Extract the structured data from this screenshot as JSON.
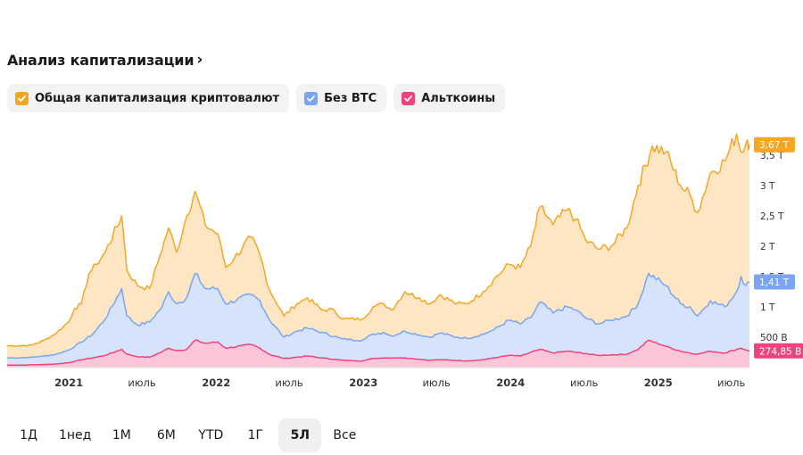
{
  "header": {
    "title": "Анализ капитализации",
    "chevron": "›"
  },
  "legend": [
    {
      "label": "Общая капитализация криптовалют",
      "color": "#f5a623"
    },
    {
      "label": "Без BTC",
      "color": "#7aa5f5"
    },
    {
      "label": "Альткоины",
      "color": "#f0437e"
    }
  ],
  "range_buttons": [
    {
      "label": "1Д",
      "active": false
    },
    {
      "label": "1нед",
      "active": false
    },
    {
      "label": "1М",
      "active": false
    },
    {
      "label": "6М",
      "active": false
    },
    {
      "label": "YTD",
      "active": false
    },
    {
      "label": "1Г",
      "active": false
    },
    {
      "label": "5Л",
      "active": true
    },
    {
      "label": "Все",
      "active": false
    }
  ],
  "chart_data": {
    "type": "area",
    "x_start": "2020-08-01",
    "x_end": "2025-08-15",
    "x_ticks": [
      {
        "date": "2021-01-01",
        "label": "2021",
        "bold": true
      },
      {
        "date": "2021-07-01",
        "label": "июль",
        "bold": false
      },
      {
        "date": "2022-01-01",
        "label": "2022",
        "bold": true
      },
      {
        "date": "2022-07-01",
        "label": "июль",
        "bold": false
      },
      {
        "date": "2023-01-01",
        "label": "2023",
        "bold": true
      },
      {
        "date": "2023-07-01",
        "label": "июль",
        "bold": false
      },
      {
        "date": "2024-01-01",
        "label": "2024",
        "bold": true
      },
      {
        "date": "2024-07-01",
        "label": "июль",
        "bold": false
      },
      {
        "date": "2025-01-01",
        "label": "2025",
        "bold": true
      },
      {
        "date": "2025-07-01",
        "label": "июль",
        "bold": false
      }
    ],
    "y_ticks": [
      {
        "value": 0.5,
        "label": "500 B"
      },
      {
        "value": 1.0,
        "label": "1 T"
      },
      {
        "value": 1.5,
        "label": "1,5 T"
      },
      {
        "value": 2.0,
        "label": "2 T"
      },
      {
        "value": 2.5,
        "label": "2,5 T"
      },
      {
        "value": 3.0,
        "label": "3 T"
      },
      {
        "value": 3.5,
        "label": "3,5 T"
      }
    ],
    "y_unit": "T",
    "ylim": [
      0.0,
      3.85
    ],
    "series": [
      {
        "name": "Общая капитализация криптовалют",
        "color": "#f5a623",
        "fill": "#fde6c4",
        "last_label": "3,67 T",
        "points": [
          [
            "2020-08-01",
            0.36
          ],
          [
            "2020-09-01",
            0.36
          ],
          [
            "2020-10-01",
            0.37
          ],
          [
            "2020-11-01",
            0.45
          ],
          [
            "2020-12-01",
            0.57
          ],
          [
            "2021-01-01",
            0.76
          ],
          [
            "2021-01-15",
            0.97
          ],
          [
            "2021-02-01",
            1.05
          ],
          [
            "2021-02-20",
            1.55
          ],
          [
            "2021-03-10",
            1.7
          ],
          [
            "2021-04-01",
            1.9
          ],
          [
            "2021-05-12",
            2.5
          ],
          [
            "2021-05-25",
            1.6
          ],
          [
            "2021-06-20",
            1.35
          ],
          [
            "2021-07-20",
            1.3
          ],
          [
            "2021-08-15",
            1.85
          ],
          [
            "2021-09-05",
            2.3
          ],
          [
            "2021-09-25",
            1.9
          ],
          [
            "2021-10-20",
            2.5
          ],
          [
            "2021-11-10",
            2.9
          ],
          [
            "2021-12-05",
            2.35
          ],
          [
            "2022-01-05",
            2.2
          ],
          [
            "2022-01-25",
            1.65
          ],
          [
            "2022-02-15",
            1.8
          ],
          [
            "2022-03-28",
            2.15
          ],
          [
            "2022-04-20",
            1.85
          ],
          [
            "2022-05-12",
            1.3
          ],
          [
            "2022-06-18",
            0.85
          ],
          [
            "2022-07-20",
            1.05
          ],
          [
            "2022-08-15",
            1.15
          ],
          [
            "2022-09-20",
            0.95
          ],
          [
            "2022-10-20",
            0.95
          ],
          [
            "2022-11-10",
            0.8
          ],
          [
            "2022-12-30",
            0.8
          ],
          [
            "2023-01-25",
            1.0
          ],
          [
            "2023-02-20",
            1.05
          ],
          [
            "2023-03-12",
            0.95
          ],
          [
            "2023-04-14",
            1.25
          ],
          [
            "2023-05-20",
            1.15
          ],
          [
            "2023-06-15",
            1.05
          ],
          [
            "2023-07-10",
            1.2
          ],
          [
            "2023-08-20",
            1.05
          ],
          [
            "2023-09-15",
            1.05
          ],
          [
            "2023-10-25",
            1.25
          ],
          [
            "2023-11-20",
            1.45
          ],
          [
            "2023-12-28",
            1.7
          ],
          [
            "2024-01-25",
            1.65
          ],
          [
            "2024-02-20",
            2.0
          ],
          [
            "2024-03-14",
            2.65
          ],
          [
            "2024-04-15",
            2.35
          ],
          [
            "2024-05-20",
            2.6
          ],
          [
            "2024-06-10",
            2.45
          ],
          [
            "2024-07-05",
            2.1
          ],
          [
            "2024-08-05",
            1.95
          ],
          [
            "2024-09-06",
            2.0
          ],
          [
            "2024-10-15",
            2.3
          ],
          [
            "2024-11-12",
            3.0
          ],
          [
            "2024-12-17",
            3.65
          ],
          [
            "2025-01-20",
            3.55
          ],
          [
            "2025-02-25",
            3.0
          ],
          [
            "2025-03-20",
            2.85
          ],
          [
            "2025-04-08",
            2.55
          ],
          [
            "2025-05-10",
            3.2
          ],
          [
            "2025-06-15",
            3.4
          ],
          [
            "2025-07-14",
            3.85
          ],
          [
            "2025-07-25",
            3.55
          ],
          [
            "2025-08-10",
            3.75
          ],
          [
            "2025-08-15",
            3.67
          ]
        ]
      },
      {
        "name": "Без BTC",
        "color": "#7aa5f5",
        "fill": "#d6e3fb",
        "last_label": "1,41 T",
        "points": [
          [
            "2020-08-01",
            0.16
          ],
          [
            "2020-09-01",
            0.16
          ],
          [
            "2020-10-01",
            0.17
          ],
          [
            "2020-11-01",
            0.19
          ],
          [
            "2020-12-01",
            0.22
          ],
          [
            "2021-01-01",
            0.29
          ],
          [
            "2021-02-01",
            0.42
          ],
          [
            "2021-03-01",
            0.55
          ],
          [
            "2021-04-01",
            0.8
          ],
          [
            "2021-05-12",
            1.3
          ],
          [
            "2021-05-25",
            0.85
          ],
          [
            "2021-06-20",
            0.7
          ],
          [
            "2021-07-20",
            0.75
          ],
          [
            "2021-08-20",
            1.0
          ],
          [
            "2021-09-05",
            1.25
          ],
          [
            "2021-09-25",
            1.05
          ],
          [
            "2021-10-20",
            1.15
          ],
          [
            "2021-11-10",
            1.55
          ],
          [
            "2021-12-05",
            1.3
          ],
          [
            "2022-01-05",
            1.3
          ],
          [
            "2022-01-25",
            1.05
          ],
          [
            "2022-03-28",
            1.2
          ],
          [
            "2022-04-20",
            1.1
          ],
          [
            "2022-05-12",
            0.8
          ],
          [
            "2022-06-18",
            0.5
          ],
          [
            "2022-07-20",
            0.6
          ],
          [
            "2022-08-15",
            0.65
          ],
          [
            "2022-09-20",
            0.58
          ],
          [
            "2022-11-10",
            0.47
          ],
          [
            "2022-12-30",
            0.45
          ],
          [
            "2023-01-25",
            0.55
          ],
          [
            "2023-02-20",
            0.58
          ],
          [
            "2023-03-12",
            0.52
          ],
          [
            "2023-04-14",
            0.6
          ],
          [
            "2023-06-15",
            0.5
          ],
          [
            "2023-07-10",
            0.57
          ],
          [
            "2023-08-20",
            0.5
          ],
          [
            "2023-09-15",
            0.48
          ],
          [
            "2023-10-25",
            0.55
          ],
          [
            "2023-11-20",
            0.62
          ],
          [
            "2023-12-28",
            0.78
          ],
          [
            "2024-01-25",
            0.72
          ],
          [
            "2024-02-20",
            0.82
          ],
          [
            "2024-03-14",
            1.08
          ],
          [
            "2024-04-15",
            0.9
          ],
          [
            "2024-05-20",
            1.0
          ],
          [
            "2024-06-10",
            0.95
          ],
          [
            "2024-07-05",
            0.82
          ],
          [
            "2024-08-05",
            0.72
          ],
          [
            "2024-09-06",
            0.78
          ],
          [
            "2024-10-15",
            0.85
          ],
          [
            "2024-11-12",
            1.05
          ],
          [
            "2024-12-08",
            1.55
          ],
          [
            "2025-01-20",
            1.35
          ],
          [
            "2025-02-25",
            1.05
          ],
          [
            "2025-03-20",
            1.0
          ],
          [
            "2025-04-08",
            0.85
          ],
          [
            "2025-05-10",
            1.1
          ],
          [
            "2025-06-15",
            1.0
          ],
          [
            "2025-07-14",
            1.25
          ],
          [
            "2025-07-25",
            1.5
          ],
          [
            "2025-08-05",
            1.35
          ],
          [
            "2025-08-15",
            1.41
          ]
        ]
      },
      {
        "name": "Альткоины",
        "color": "#f0437e",
        "fill": "#fbc7d8",
        "last_label": "274,85 B",
        "points": [
          [
            "2020-08-01",
            0.04
          ],
          [
            "2020-09-01",
            0.04
          ],
          [
            "2020-10-01",
            0.045
          ],
          [
            "2020-11-01",
            0.05
          ],
          [
            "2020-12-01",
            0.06
          ],
          [
            "2021-01-01",
            0.08
          ],
          [
            "2021-02-01",
            0.13
          ],
          [
            "2021-03-01",
            0.16
          ],
          [
            "2021-04-01",
            0.2
          ],
          [
            "2021-05-12",
            0.3
          ],
          [
            "2021-05-25",
            0.22
          ],
          [
            "2021-06-20",
            0.18
          ],
          [
            "2021-07-20",
            0.17
          ],
          [
            "2021-08-20",
            0.26
          ],
          [
            "2021-09-05",
            0.32
          ],
          [
            "2021-09-25",
            0.28
          ],
          [
            "2021-10-20",
            0.3
          ],
          [
            "2021-11-10",
            0.45
          ],
          [
            "2021-12-05",
            0.4
          ],
          [
            "2022-01-05",
            0.42
          ],
          [
            "2022-01-25",
            0.32
          ],
          [
            "2022-03-28",
            0.38
          ],
          [
            "2022-04-20",
            0.32
          ],
          [
            "2022-05-12",
            0.22
          ],
          [
            "2022-06-18",
            0.15
          ],
          [
            "2022-07-20",
            0.17
          ],
          [
            "2022-08-15",
            0.19
          ],
          [
            "2022-09-20",
            0.16
          ],
          [
            "2022-11-10",
            0.12
          ],
          [
            "2022-12-30",
            0.11
          ],
          [
            "2023-01-25",
            0.15
          ],
          [
            "2023-02-20",
            0.16
          ],
          [
            "2023-04-14",
            0.16
          ],
          [
            "2023-06-15",
            0.12
          ],
          [
            "2023-07-10",
            0.13
          ],
          [
            "2023-09-15",
            0.11
          ],
          [
            "2023-10-25",
            0.13
          ],
          [
            "2023-11-20",
            0.16
          ],
          [
            "2023-12-28",
            0.2
          ],
          [
            "2024-01-25",
            0.19
          ],
          [
            "2024-03-14",
            0.3
          ],
          [
            "2024-04-15",
            0.24
          ],
          [
            "2024-05-20",
            0.27
          ],
          [
            "2024-07-05",
            0.23
          ],
          [
            "2024-08-05",
            0.2
          ],
          [
            "2024-09-06",
            0.21
          ],
          [
            "2024-10-15",
            0.22
          ],
          [
            "2024-11-12",
            0.3
          ],
          [
            "2024-12-08",
            0.45
          ],
          [
            "2025-01-20",
            0.35
          ],
          [
            "2025-02-25",
            0.27
          ],
          [
            "2025-04-08",
            0.22
          ],
          [
            "2025-05-10",
            0.27
          ],
          [
            "2025-06-15",
            0.24
          ],
          [
            "2025-07-14",
            0.3
          ],
          [
            "2025-07-25",
            0.32
          ],
          [
            "2025-08-15",
            0.27485
          ]
        ]
      }
    ]
  }
}
